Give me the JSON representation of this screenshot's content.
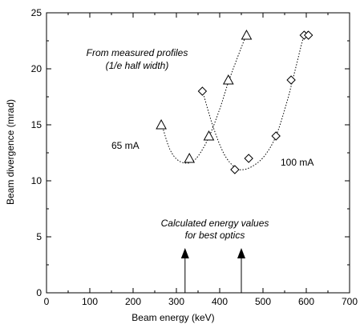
{
  "chart_data": {
    "type": "scatter",
    "title": "",
    "xlabel": "Beam energy (keV)",
    "ylabel": "Beam divergence (mrad)",
    "xlim": [
      0,
      700
    ],
    "ylim": [
      0,
      25
    ],
    "x_ticks": [
      0,
      100,
      200,
      300,
      400,
      500,
      600,
      700
    ],
    "y_ticks": [
      0,
      5,
      10,
      15,
      20,
      25
    ],
    "grid": false,
    "series": [
      {
        "name": "65 mA",
        "marker": "triangle",
        "color": "#000000",
        "points": [
          {
            "x": 265,
            "y": 15
          },
          {
            "x": 330,
            "y": 12
          },
          {
            "x": 375,
            "y": 14
          },
          {
            "x": 420,
            "y": 19
          },
          {
            "x": 462,
            "y": 23
          }
        ],
        "fit_curve": [
          [
            268,
            14.8
          ],
          [
            285,
            12.8
          ],
          [
            305,
            11.8
          ],
          [
            330,
            11.6
          ],
          [
            350,
            12.2
          ],
          [
            375,
            13.9
          ],
          [
            400,
            16.4
          ],
          [
            420,
            18.8
          ],
          [
            440,
            20.9
          ],
          [
            462,
            23.1
          ]
        ]
      },
      {
        "name": "100 mA",
        "marker": "diamond",
        "color": "#000000",
        "points": [
          {
            "x": 360,
            "y": 18
          },
          {
            "x": 435,
            "y": 11
          },
          {
            "x": 467,
            "y": 12
          },
          {
            "x": 530,
            "y": 14
          },
          {
            "x": 565,
            "y": 19
          },
          {
            "x": 595,
            "y": 23
          },
          {
            "x": 605,
            "y": 23
          }
        ],
        "fit_curve": [
          [
            362,
            17.8
          ],
          [
            385,
            14.8
          ],
          [
            410,
            12.4
          ],
          [
            435,
            11.2
          ],
          [
            455,
            11.0
          ],
          [
            480,
            11.4
          ],
          [
            505,
            12.3
          ],
          [
            530,
            14.0
          ],
          [
            555,
            17.0
          ],
          [
            575,
            20.0
          ],
          [
            595,
            23.0
          ],
          [
            605,
            23.3
          ]
        ]
      }
    ],
    "series_labels": {
      "s65": "65 mA",
      "s100": "100 mA"
    },
    "annotations": {
      "measured_line1": "From measured profiles",
      "measured_line2": "(1/e half width)",
      "calc_line1": "Calculated energy values",
      "calc_line2": "for best optics"
    },
    "arrows": [
      {
        "x": 320,
        "y_from": 0,
        "y_to": 4
      },
      {
        "x": 450,
        "y_from": 0,
        "y_to": 4
      }
    ]
  }
}
